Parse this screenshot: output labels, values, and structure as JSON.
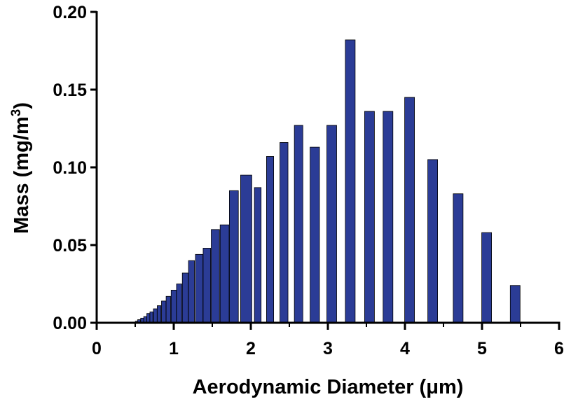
{
  "chart_data": {
    "type": "bar",
    "title": "",
    "xlabel": "Aerodynamic Diameter (μm)",
    "ylabel": "Mass (mg/m",
    "ylabel_superscript": "3",
    "ylabel_close": ")",
    "xlim": [
      0,
      6
    ],
    "ylim": [
      0,
      0.2
    ],
    "xticks": [
      "0",
      "1",
      "2",
      "3",
      "4",
      "5",
      "6"
    ],
    "yticks": [
      "0.00",
      "0.05",
      "0.10",
      "0.15",
      "0.20"
    ],
    "grid": false,
    "bar_color": "#2b3c96",
    "bar_edge_color": "#000000",
    "x": [
      0.52,
      0.55,
      0.59,
      0.63,
      0.67,
      0.71,
      0.76,
      0.81,
      0.87,
      0.93,
      1.0,
      1.07,
      1.15,
      1.23,
      1.33,
      1.43,
      1.54,
      1.66,
      1.78,
      1.94,
      2.09,
      2.25,
      2.43,
      2.62,
      2.83,
      3.05,
      3.29,
      3.54,
      3.78,
      4.06,
      4.36,
      4.69,
      5.06,
      5.43,
      5.86
    ],
    "values": [
      0.001,
      0.002,
      0.003,
      0.004,
      0.006,
      0.007,
      0.009,
      0.011,
      0.014,
      0.017,
      0.021,
      0.025,
      0.032,
      0.04,
      0.044,
      0.048,
      0.06,
      0.063,
      0.085,
      0.095,
      0.087,
      0.107,
      0.116,
      0.127,
      0.113,
      0.127,
      0.182,
      0.136,
      0.136,
      0.145,
      0.105,
      0.083,
      0.058,
      0.024,
      0.0
    ]
  }
}
